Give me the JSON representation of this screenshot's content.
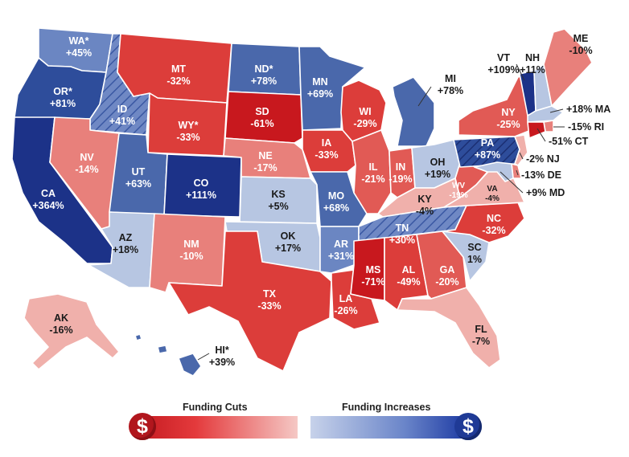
{
  "colors": {
    "deep_red": "#c8181e",
    "red": "#dc3d3a",
    "mid_red": "#e15a55",
    "salmon": "#e8807b",
    "pink": "#f0b0ab",
    "light_blue": "#b7c6e2",
    "mid_blue": "#6b86c2",
    "blue": "#4a68ab",
    "dark_blue": "#2e4d9b",
    "navy": "#1c3288",
    "hatch_blue": "#7890c7",
    "text_dark": "#1a1a1a",
    "text_light": "#ffffff"
  },
  "legend": {
    "cuts_label": "Funding Cuts",
    "increases_label": "Funding Increases",
    "cuts_icon": "$",
    "increases_icon": "$"
  },
  "states": [
    {
      "abbr": "WA*",
      "value": "+45%",
      "fill": "mid_blue"
    },
    {
      "abbr": "OR*",
      "value": "+81%",
      "fill": "dark_blue"
    },
    {
      "abbr": "CA",
      "value": "+364%",
      "fill": "navy"
    },
    {
      "abbr": "ID",
      "value": "+41%",
      "fill": "hatch_blue",
      "hatched": true
    },
    {
      "abbr": "NV",
      "value": "-14%",
      "fill": "salmon"
    },
    {
      "abbr": "MT",
      "value": "-32%",
      "fill": "red"
    },
    {
      "abbr": "WY*",
      "value": "-33%",
      "fill": "red"
    },
    {
      "abbr": "UT",
      "value": "+63%",
      "fill": "blue"
    },
    {
      "abbr": "AZ",
      "value": "+18%",
      "fill": "light_blue"
    },
    {
      "abbr": "CO",
      "value": "+111%",
      "fill": "navy"
    },
    {
      "abbr": "NM",
      "value": "-10%",
      "fill": "salmon"
    },
    {
      "abbr": "ND*",
      "value": "+78%",
      "fill": "blue"
    },
    {
      "abbr": "SD",
      "value": "-61%",
      "fill": "deep_red"
    },
    {
      "abbr": "NE",
      "value": "-17%",
      "fill": "salmon"
    },
    {
      "abbr": "KS",
      "value": "+5%",
      "fill": "light_blue"
    },
    {
      "abbr": "OK",
      "value": "+17%",
      "fill": "light_blue"
    },
    {
      "abbr": "TX",
      "value": "-33%",
      "fill": "red"
    },
    {
      "abbr": "MN",
      "value": "+69%",
      "fill": "blue"
    },
    {
      "abbr": "IA",
      "value": "-33%",
      "fill": "red"
    },
    {
      "abbr": "MO",
      "value": "+68%",
      "fill": "blue"
    },
    {
      "abbr": "AR",
      "value": "+31%",
      "fill": "mid_blue"
    },
    {
      "abbr": "LA",
      "value": "-26%",
      "fill": "red"
    },
    {
      "abbr": "WI",
      "value": "-29%",
      "fill": "red"
    },
    {
      "abbr": "IL",
      "value": "-21%",
      "fill": "mid_red"
    },
    {
      "abbr": "MI",
      "value": "+78%",
      "fill": "blue"
    },
    {
      "abbr": "IN",
      "value": "-19%",
      "fill": "mid_red"
    },
    {
      "abbr": "OH",
      "value": "+19%",
      "fill": "light_blue"
    },
    {
      "abbr": "KY",
      "value": "-4%",
      "fill": "pink"
    },
    {
      "abbr": "TN",
      "value": "+30%",
      "fill": "hatch_blue",
      "hatched": true
    },
    {
      "abbr": "MS",
      "value": "-71%",
      "fill": "deep_red"
    },
    {
      "abbr": "AL",
      "value": "-49%",
      "fill": "red"
    },
    {
      "abbr": "GA",
      "value": "-20%",
      "fill": "mid_red"
    },
    {
      "abbr": "FL",
      "value": "-7%",
      "fill": "pink"
    },
    {
      "abbr": "SC",
      "value": "1%",
      "fill": "light_blue"
    },
    {
      "abbr": "NC",
      "value": "-32%",
      "fill": "red"
    },
    {
      "abbr": "VA",
      "value": "-4%",
      "fill": "pink"
    },
    {
      "abbr": "WV",
      "value": "-19%",
      "fill": "mid_red"
    },
    {
      "abbr": "PA",
      "value": "+87%",
      "fill": "dark_blue",
      "hatched": true
    },
    {
      "abbr": "NY",
      "value": "-25%",
      "fill": "mid_red"
    },
    {
      "abbr": "VT",
      "value": "+109%",
      "fill": "navy"
    },
    {
      "abbr": "NH",
      "value": "+11%",
      "fill": "light_blue"
    },
    {
      "abbr": "ME",
      "value": "-10%",
      "fill": "salmon"
    },
    {
      "abbr": "MA",
      "value": "+18%",
      "fill": "light_blue"
    },
    {
      "abbr": "RI",
      "value": "-15%",
      "fill": "salmon"
    },
    {
      "abbr": "CT",
      "value": "-51%",
      "fill": "deep_red"
    },
    {
      "abbr": "NJ",
      "value": "-2%",
      "fill": "pink"
    },
    {
      "abbr": "DE",
      "value": "-13%",
      "fill": "salmon"
    },
    {
      "abbr": "MD",
      "value": "+9%",
      "fill": "light_blue"
    },
    {
      "abbr": "AK",
      "value": "-16%",
      "fill": "pink"
    },
    {
      "abbr": "HI*",
      "value": "+39%",
      "fill": "blue"
    }
  ]
}
